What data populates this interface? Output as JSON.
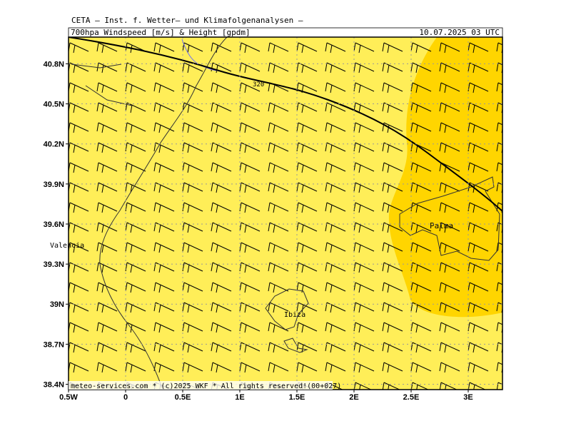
{
  "header": {
    "source": "CETA — Inst. f. Wetter— und Klimafolgenanalysen —",
    "title": "700hpa Windspeed [m/s] & Height [gpdm]",
    "time": "10.07.2025 03 UTC"
  },
  "map": {
    "xlim": [
      -0.5,
      3.3
    ],
    "ylim": [
      38.36,
      41.0
    ],
    "xticks": [
      {
        "value": -0.5,
        "label": "0.5W"
      },
      0,
      {
        "value": 0.5,
        "label": "0.5E"
      },
      {
        "value": 1,
        "label": "1E"
      },
      {
        "value": 1.5,
        "label": "1.5E"
      },
      {
        "value": 2,
        "label": "2E"
      },
      {
        "value": 2.5,
        "label": "2.5E"
      },
      {
        "value": 3,
        "label": "3E"
      }
    ],
    "yticks": [
      {
        "value": 40.8,
        "label": "40.8N"
      },
      {
        "value": 40.5,
        "label": "40.5N"
      },
      {
        "value": 40.2,
        "label": "40.2N"
      },
      {
        "value": 39.9,
        "label": "39.9N"
      },
      {
        "value": 39.6,
        "label": "39.6N"
      },
      {
        "value": 39.3,
        "label": "39.3N"
      },
      {
        "value": 39,
        "label": "39N"
      },
      {
        "value": 38.7,
        "label": "38.7N"
      },
      {
        "value": 38.4,
        "label": "38.4N"
      }
    ],
    "places": [
      "Valencia",
      "Palma",
      "Ibiza"
    ],
    "contour_label": "320"
  },
  "footer": "meteo-services.com * (c)2025 WKF * All rights reserved!(00+027)"
}
